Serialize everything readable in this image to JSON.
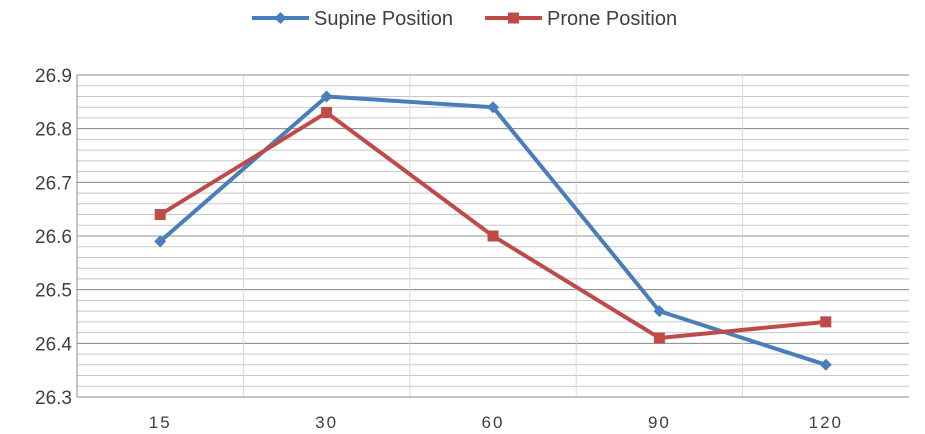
{
  "chart_data": {
    "type": "line",
    "title": "",
    "xlabel": "",
    "ylabel": "",
    "categories": [
      "15",
      "30",
      "60",
      "90",
      "120"
    ],
    "ylim": [
      26.3,
      26.9
    ],
    "y_ticks": [
      "26.3",
      "26.4",
      "26.5",
      "26.6",
      "26.7",
      "26.8",
      "26.9"
    ],
    "minor_grid_step": 0.02,
    "grid": true,
    "legend_position": "top",
    "series": [
      {
        "name": "Supine Position",
        "color": "#4a7ebb",
        "marker": "diamond",
        "values": [
          26.59,
          26.86,
          26.84,
          26.46,
          26.36
        ]
      },
      {
        "name": "Prone Position",
        "color": "#be4b48",
        "marker": "square",
        "values": [
          26.64,
          26.83,
          26.6,
          26.41,
          26.44
        ]
      }
    ]
  }
}
